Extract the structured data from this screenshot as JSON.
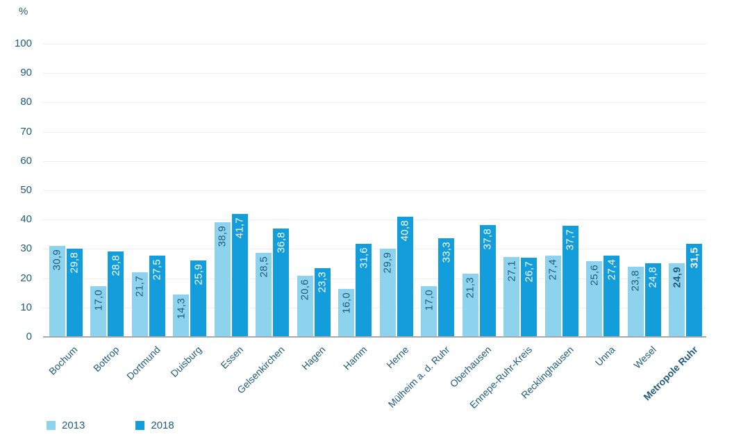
{
  "chart": {
    "unit_label": "%"
  },
  "chart_data": {
    "type": "bar",
    "title": "",
    "xlabel": "",
    "ylabel": "%",
    "categories": [
      "Bochum",
      "Bottrop",
      "Dortmund",
      "Duisburg",
      "Essen",
      "Gelsenkirchen",
      "Hagen",
      "Hamm",
      "Herne",
      "Mülheim a. d. Ruhr",
      "Oberhausen",
      "Ennepe-Ruhr-Kreis",
      "Recklinghausen",
      "Unna",
      "Wesel",
      "Metropole Ruhr"
    ],
    "emphasized_category": "Metropole Ruhr",
    "series": [
      {
        "name": "2013",
        "color": "#8ED3EE",
        "label_color": "#1E5B7E",
        "values": [
          30.9,
          17.0,
          21.7,
          14.3,
          38.9,
          28.5,
          20.6,
          16.0,
          29.9,
          17.0,
          21.3,
          27.1,
          27.4,
          25.6,
          23.8,
          24.9
        ],
        "labels": [
          "30,9",
          "17,0",
          "21,7",
          "14,3",
          "38,9",
          "28,5",
          "20,6",
          "16,0",
          "29,9",
          "17,0",
          "21,3",
          "27,1",
          "27,4",
          "25,6",
          "23,8",
          "24,9"
        ]
      },
      {
        "name": "2018",
        "color": "#149DDB",
        "label_color": "#FFFFFF",
        "values": [
          29.8,
          28.8,
          27.5,
          25.9,
          41.7,
          36.8,
          23.3,
          31.6,
          40.8,
          33.3,
          37.8,
          26.7,
          37.7,
          27.4,
          24.8,
          31.5
        ],
        "labels": [
          "29,8",
          "28,8",
          "27,5",
          "25,9",
          "41,7",
          "36,8",
          "23,3",
          "31,6",
          "40,8",
          "33,3",
          "37,8",
          "26,7",
          "37,7",
          "27,4",
          "24,8",
          "31,5"
        ]
      }
    ],
    "y_axis": {
      "min": 0,
      "max": 100,
      "step": 10,
      "tick_labels": [
        "0",
        "10",
        "20",
        "30",
        "40",
        "50",
        "60",
        "70",
        "80",
        "90",
        "100"
      ]
    },
    "grid": true,
    "legend_position": "bottom-left",
    "style": {
      "axis_text_color": "#1E5B7E",
      "gridline_color": "#EDEDED",
      "baseline_color": "#A6AAAE",
      "background": "#FFFFFF"
    }
  }
}
